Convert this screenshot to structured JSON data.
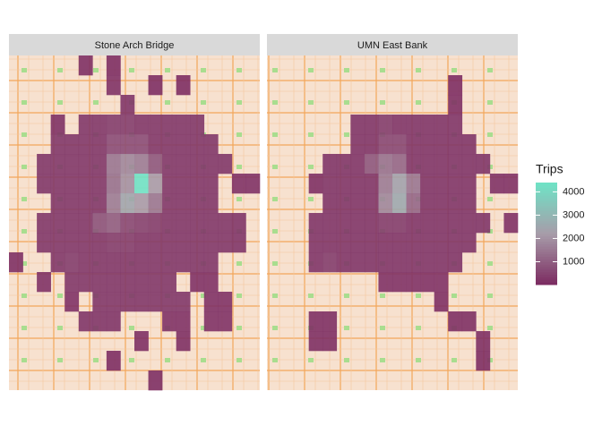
{
  "chart_data": {
    "type": "heatmap",
    "facets": [
      {
        "title": "Stone Arch Bridge",
        "z": [
          [
            null,
            null,
            null,
            null,
            null,
            150,
            null,
            120,
            null,
            null,
            null,
            null,
            null,
            null,
            null,
            null,
            null,
            null
          ],
          [
            null,
            null,
            null,
            null,
            null,
            null,
            null,
            200,
            null,
            null,
            130,
            null,
            110,
            null,
            null,
            null,
            null,
            null
          ],
          [
            null,
            null,
            null,
            null,
            null,
            null,
            null,
            null,
            250,
            null,
            null,
            null,
            null,
            null,
            null,
            null,
            null,
            null
          ],
          [
            null,
            null,
            null,
            180,
            null,
            300,
            300,
            400,
            400,
            300,
            300,
            300,
            300,
            300,
            null,
            null,
            null,
            null
          ],
          [
            null,
            null,
            null,
            300,
            300,
            300,
            300,
            700,
            700,
            700,
            300,
            300,
            300,
            300,
            300,
            null,
            null,
            null
          ],
          [
            null,
            null,
            300,
            300,
            300,
            300,
            300,
            1500,
            1800,
            1600,
            900,
            300,
            300,
            300,
            300,
            300,
            null,
            null
          ],
          [
            null,
            null,
            300,
            300,
            300,
            300,
            300,
            1400,
            2000,
            4400,
            2200,
            300,
            300,
            300,
            300,
            null,
            200,
            200
          ],
          [
            null,
            null,
            null,
            300,
            300,
            300,
            300,
            1600,
            2500,
            2200,
            1500,
            300,
            300,
            300,
            300,
            null,
            null,
            null
          ],
          [
            null,
            null,
            300,
            300,
            300,
            300,
            800,
            1000,
            600,
            500,
            400,
            300,
            300,
            300,
            300,
            300,
            250,
            null
          ],
          [
            null,
            null,
            300,
            300,
            300,
            300,
            300,
            400,
            400,
            300,
            300,
            300,
            300,
            300,
            300,
            300,
            250,
            null
          ],
          [
            150,
            null,
            null,
            300,
            400,
            300,
            300,
            300,
            300,
            300,
            300,
            300,
            300,
            300,
            300,
            null,
            null,
            null
          ],
          [
            null,
            null,
            200,
            null,
            300,
            300,
            300,
            300,
            300,
            300,
            300,
            300,
            null,
            200,
            200,
            null,
            null,
            null
          ],
          [
            null,
            null,
            null,
            null,
            200,
            null,
            300,
            300,
            300,
            300,
            300,
            300,
            300,
            null,
            200,
            200,
            null,
            null
          ],
          [
            null,
            null,
            null,
            null,
            null,
            250,
            250,
            250,
            null,
            null,
            null,
            200,
            200,
            null,
            200,
            200,
            null,
            null
          ],
          [
            null,
            null,
            null,
            null,
            null,
            null,
            null,
            null,
            null,
            150,
            null,
            null,
            150,
            null,
            null,
            null,
            null,
            null
          ],
          [
            null,
            null,
            null,
            null,
            null,
            null,
            null,
            120,
            null,
            null,
            null,
            null,
            null,
            null,
            null,
            null,
            null,
            null
          ],
          [
            null,
            null,
            null,
            null,
            null,
            null,
            null,
            null,
            null,
            null,
            130,
            null,
            null,
            null,
            null,
            null,
            null,
            null
          ]
        ]
      },
      {
        "title": "UMN East Bank",
        "z": [
          [
            null,
            null,
            null,
            null,
            null,
            null,
            null,
            null,
            null,
            null,
            null,
            null,
            null,
            null,
            null,
            null,
            null,
            null
          ],
          [
            null,
            null,
            null,
            null,
            null,
            null,
            null,
            null,
            null,
            null,
            null,
            null,
            null,
            120,
            null,
            null,
            null,
            null
          ],
          [
            null,
            null,
            null,
            null,
            null,
            null,
            null,
            null,
            null,
            null,
            null,
            null,
            null,
            150,
            null,
            null,
            null,
            null
          ],
          [
            null,
            null,
            null,
            null,
            null,
            null,
            250,
            250,
            400,
            250,
            250,
            250,
            250,
            250,
            null,
            null,
            null,
            null
          ],
          [
            null,
            null,
            null,
            null,
            null,
            null,
            250,
            250,
            600,
            600,
            250,
            250,
            250,
            250,
            250,
            null,
            null,
            null
          ],
          [
            null,
            null,
            null,
            null,
            250,
            250,
            250,
            900,
            1400,
            1200,
            250,
            250,
            250,
            250,
            250,
            250,
            null,
            null
          ],
          [
            null,
            null,
            null,
            150,
            250,
            250,
            250,
            250,
            1600,
            2400,
            1500,
            250,
            250,
            250,
            250,
            null,
            200,
            200
          ],
          [
            null,
            null,
            null,
            null,
            250,
            250,
            250,
            250,
            1800,
            2600,
            1200,
            250,
            250,
            250,
            250,
            null,
            null,
            null
          ],
          [
            null,
            null,
            null,
            250,
            250,
            250,
            250,
            250,
            400,
            400,
            250,
            250,
            250,
            250,
            250,
            250,
            null,
            200
          ],
          [
            null,
            null,
            null,
            250,
            250,
            250,
            250,
            250,
            250,
            250,
            250,
            250,
            250,
            250,
            250,
            null,
            null,
            null
          ],
          [
            null,
            null,
            null,
            250,
            400,
            250,
            250,
            250,
            250,
            250,
            250,
            250,
            250,
            250,
            null,
            null,
            null,
            null
          ],
          [
            null,
            null,
            null,
            null,
            null,
            null,
            null,
            null,
            200,
            200,
            200,
            200,
            200,
            null,
            null,
            null,
            null,
            null
          ],
          [
            null,
            null,
            null,
            null,
            null,
            null,
            null,
            null,
            null,
            null,
            null,
            null,
            150,
            null,
            null,
            null,
            null,
            null
          ],
          [
            null,
            null,
            null,
            150,
            150,
            null,
            null,
            null,
            null,
            null,
            null,
            null,
            null,
            150,
            150,
            null,
            null,
            null
          ],
          [
            null,
            null,
            null,
            150,
            150,
            null,
            null,
            null,
            null,
            null,
            null,
            null,
            null,
            null,
            null,
            150,
            null,
            null
          ],
          [
            null,
            null,
            null,
            null,
            null,
            null,
            null,
            null,
            null,
            null,
            null,
            null,
            null,
            null,
            null,
            120,
            null,
            null
          ],
          [
            null,
            null,
            null,
            null,
            null,
            null,
            null,
            null,
            null,
            null,
            null,
            null,
            null,
            null,
            null,
            null,
            null,
            null
          ]
        ]
      }
    ],
    "legend_title": "Trips",
    "clim": [
      20,
      4400
    ],
    "ticks": [
      1000,
      2000,
      3000,
      4000
    ],
    "colors": [
      "#7b2a60",
      "#a79ca9",
      "#6fe3c6"
    ]
  }
}
